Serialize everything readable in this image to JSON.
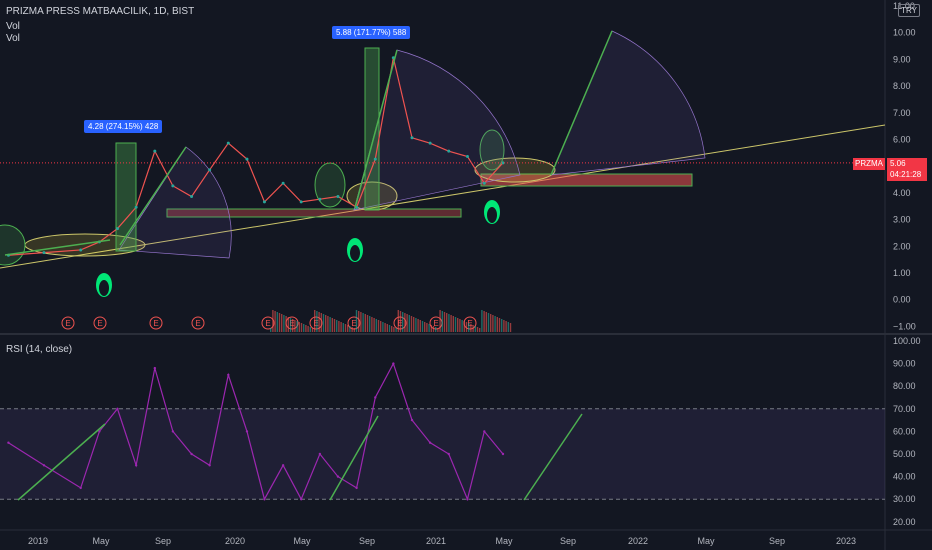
{
  "header": {
    "symbol_line": "PRIZMA PRESS MATBAACILIK, 1D, BIST",
    "vol1": "Vol",
    "vol2": "Vol",
    "currency": "TRY"
  },
  "price_tag": {
    "symbol": "PRZMA",
    "price": "5.06",
    "countdown": "04:21:28"
  },
  "annotations": {
    "label1": "4.28 (274.15%) 428",
    "label2": "5.88 (171.77%) 588"
  },
  "rsi_label": "RSI (14, close)",
  "colors": {
    "background": "#131722",
    "rsi": "#9c27b0",
    "price_up": "#26a69a",
    "price_down": "#ef5350",
    "tag": "#f23645",
    "arrow": "#4caf50",
    "trend": "#ccc66a"
  },
  "chart_data": [
    {
      "type": "line",
      "title": "PRIZMA PRESS MATBAACILIK, 1D, BIST",
      "price_ticks": [
        "11.00",
        "10.00",
        "9.00",
        "8.00",
        "7.00",
        "6.00",
        "5.00",
        "4.00",
        "3.00",
        "2.00",
        "1.00",
        "0.00",
        "−1.00"
      ],
      "x_ticks": [
        "2019",
        "May",
        "Sep",
        "2020",
        "May",
        "Sep",
        "2021",
        "May",
        "Sep",
        "2022",
        "May",
        "Sep",
        "2023"
      ],
      "dates": [
        "2019-01",
        "2019-03",
        "2019-05",
        "2019-06",
        "2019-07",
        "2019-08",
        "2019-09",
        "2019-10",
        "2019-11",
        "2019-12",
        "2020-01",
        "2020-02",
        "2020-03",
        "2020-04",
        "2020-05",
        "2020-06",
        "2020-07",
        "2020-08",
        "2020-09",
        "2020-10",
        "2020-11",
        "2020-12",
        "2021-01",
        "2021-02",
        "2021-03",
        "2021-04"
      ],
      "close": [
        1.6,
        1.7,
        1.8,
        2.1,
        2.6,
        3.4,
        5.5,
        4.2,
        3.8,
        4.8,
        5.8,
        5.2,
        3.6,
        4.3,
        3.6,
        3.7,
        3.8,
        3.4,
        5.2,
        9.0,
        6.0,
        5.8,
        5.5,
        5.3,
        4.3,
        5.06
      ],
      "last_price": 5.06,
      "earnings_markers": [
        "E",
        "E",
        "E",
        "E",
        "E",
        "E",
        "E",
        "E",
        "E",
        "E",
        "E"
      ],
      "annotations": [
        "4.28 (274.15%) 428",
        "5.88 (171.77%) 588"
      ]
    },
    {
      "type": "line",
      "title": "RSI (14, close)",
      "y_ticks": [
        "100.00",
        "90.00",
        "80.00",
        "70.00",
        "60.00",
        "50.00",
        "40.00",
        "30.00",
        "20.00"
      ],
      "ylim": [
        20,
        100
      ],
      "bands": [
        30,
        70
      ],
      "values": [
        55,
        45,
        35,
        60,
        70,
        45,
        88,
        60,
        50,
        45,
        85,
        60,
        30,
        45,
        30,
        50,
        40,
        35,
        75,
        90,
        65,
        55,
        50,
        30,
        60,
        50
      ]
    }
  ]
}
